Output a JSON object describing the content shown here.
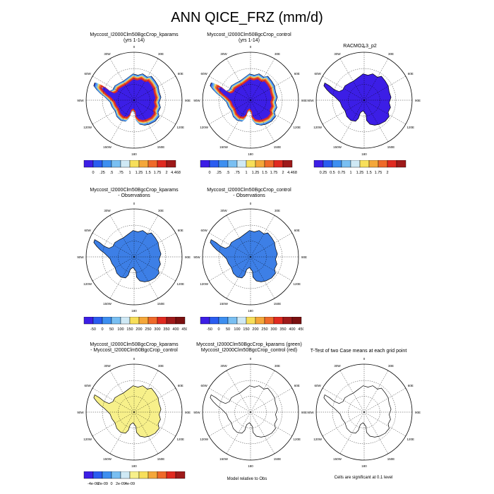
{
  "title": "ANN QICE_FRZ (mm/d)",
  "rows": [
    {
      "panels": [
        {
          "id": "p11",
          "title1": "Myccost_I2000Clm50BgcCrop_kparams",
          "title2": "(yrs 1-14)",
          "fill": "full",
          "palette": "a"
        },
        {
          "id": "p12",
          "title1": "Myccost_I2000Clm50BgcCrop_control",
          "title2": "(yrs 1-14)",
          "fill": "full",
          "palette": "a"
        },
        {
          "id": "p13",
          "title1": "RACMO2.3_p2",
          "title2": "",
          "fill": "obs",
          "palette": "a"
        }
      ],
      "colorbars": [
        {
          "labels": [
            "0",
            ".25",
            ".5",
            ".75",
            "1",
            "1.25",
            "1.5",
            "1.75",
            "2",
            "4.468"
          ]
        },
        {
          "labels": [
            "0",
            ".25",
            ".5",
            ".75",
            "1",
            "1.25",
            "1.5",
            "1.75",
            "2",
            "4.468"
          ]
        },
        {
          "labels": [
            "0.25",
            "0.5",
            "0.75",
            "1",
            "1.25",
            "1.5",
            "1.75",
            "2"
          ]
        }
      ]
    },
    {
      "panels": [
        {
          "id": "p21",
          "title1": "Myccost_I2000Clm50BgcCrop_kparams",
          "title2": "- Observations",
          "fill": "diff",
          "palette": "b"
        },
        {
          "id": "p22",
          "title1": "Myccost_I2000Clm50BgcCrop_control",
          "title2": "- Observations",
          "fill": "diff",
          "palette": "b"
        }
      ],
      "colorbars": [
        {
          "labels": [
            "-50",
            "0",
            "50",
            "100",
            "150",
            "200",
            "250",
            "300",
            "350",
            "400",
            "450"
          ]
        },
        {
          "labels": [
            "-50",
            "0",
            "50",
            "100",
            "150",
            "200",
            "250",
            "300",
            "350",
            "400",
            "450"
          ]
        }
      ]
    },
    {
      "panels": [
        {
          "id": "p31",
          "title1": "Myccost_I2000Clm50BgcCrop_kparams",
          "title2": "- Myccost_I2000Clm50BgcCrop_control",
          "fill": "yellow",
          "palette": "c"
        },
        {
          "id": "p32",
          "title1": "Myccost_I2000Clm50BgcCrop_kparams (green)",
          "title2": "Myccost_I2000Clm50BgcCrop_control (red)",
          "fill": "none",
          "palette": "c"
        },
        {
          "id": "p33",
          "title1": "T-Test of two Case means at each grid point",
          "title2": "",
          "fill": "none",
          "palette": "c"
        }
      ],
      "colorbars": [
        {
          "labels": [
            "-4e-09",
            "-2e-09",
            "0",
            "2e-09",
            "4e-09"
          ]
        }
      ],
      "notes": [
        "Model relative to Obs",
        "Cells are significant at 0.1 level"
      ]
    }
  ],
  "map_labels": [
    "0",
    "30E",
    "60E",
    "90E",
    "120E",
    "150E",
    "180",
    "150W",
    "120W",
    "90W",
    "60W",
    "30W"
  ],
  "palettes": {
    "a": [
      "#3c1ee6",
      "#2a5cf0",
      "#3d8ff0",
      "#79bff2",
      "#cfe9f5",
      "#f7df5a",
      "#f4a73a",
      "#ef6a2a",
      "#e02a20",
      "#9e1a1a"
    ],
    "b": [
      "#3c1ee6",
      "#2a5cf0",
      "#3d8ff0",
      "#79bff2",
      "#cfe9f5",
      "#f7df5a",
      "#f4a73a",
      "#ef6a2a",
      "#e02a20",
      "#9e1a1a",
      "#7a1010"
    ],
    "c": [
      "#3c1ee6",
      "#2a5cf0",
      "#3d8ff0",
      "#79bff2",
      "#cfe9f5",
      "#f7f08a",
      "#f7df5a",
      "#f4a73a",
      "#ef6a2a",
      "#e02a20",
      "#9e1a1a"
    ]
  }
}
